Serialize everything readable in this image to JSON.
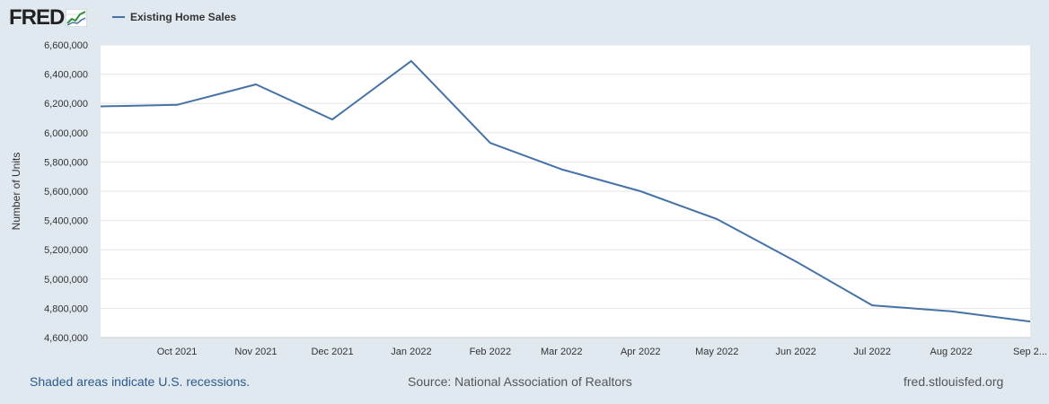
{
  "header": {
    "logo_text": "FRED",
    "logo_icon": "line-chart-logo-icon"
  },
  "colors": {
    "page_background": "#e1e9f0",
    "plot_background": "#ffffff",
    "series_line": "#4572a7",
    "gridline": "#e6e6e6",
    "axis_text": "#333333",
    "link": "#2a5a8c"
  },
  "footer": {
    "recession_note": "Shaded areas indicate U.S. recessions.",
    "source": "Source: National Association of Realtors",
    "site": "fred.stlouisfed.org"
  },
  "chart_data": {
    "type": "line",
    "title": "",
    "xlabel": "",
    "ylabel": "Number of Units",
    "ylim": [
      4600000,
      6600000
    ],
    "yticks": [
      4600000,
      4800000,
      5000000,
      5200000,
      5400000,
      5600000,
      5800000,
      6000000,
      6200000,
      6400000,
      6600000
    ],
    "ytick_labels": [
      "4,600,000",
      "4,800,000",
      "5,000,000",
      "5,200,000",
      "5,400,000",
      "5,600,000",
      "5,800,000",
      "6,000,000",
      "6,200,000",
      "6,400,000",
      "6,600,000"
    ],
    "xlim": [
      "2021-09-01",
      "2022-09-01"
    ],
    "xticks": [
      "2021-10-01",
      "2021-11-01",
      "2021-12-01",
      "2022-01-01",
      "2022-02-01",
      "2022-03-01",
      "2022-04-01",
      "2022-05-01",
      "2022-06-01",
      "2022-07-01",
      "2022-08-01",
      "2022-09-01"
    ],
    "xtick_labels": [
      "Oct 2021",
      "Nov 2021",
      "Dec 2021",
      "Jan 2022",
      "Feb 2022",
      "Mar 2022",
      "Apr 2022",
      "May 2022",
      "Jun 2022",
      "Jul 2022",
      "Aug 2022",
      "Sep 2..."
    ],
    "legend_position": "top-left",
    "grid": true,
    "series": [
      {
        "name": "Existing Home Sales",
        "x": [
          "2021-09-01",
          "2021-10-01",
          "2021-11-01",
          "2021-12-01",
          "2022-01-01",
          "2022-02-01",
          "2022-03-01",
          "2022-04-01",
          "2022-05-01",
          "2022-06-01",
          "2022-07-01",
          "2022-08-01",
          "2022-09-01"
        ],
        "values": [
          6180000,
          6190000,
          6330000,
          6090000,
          6490000,
          5930000,
          5750000,
          5600000,
          5410000,
          5120000,
          4820000,
          4780000,
          4710000
        ]
      }
    ]
  }
}
